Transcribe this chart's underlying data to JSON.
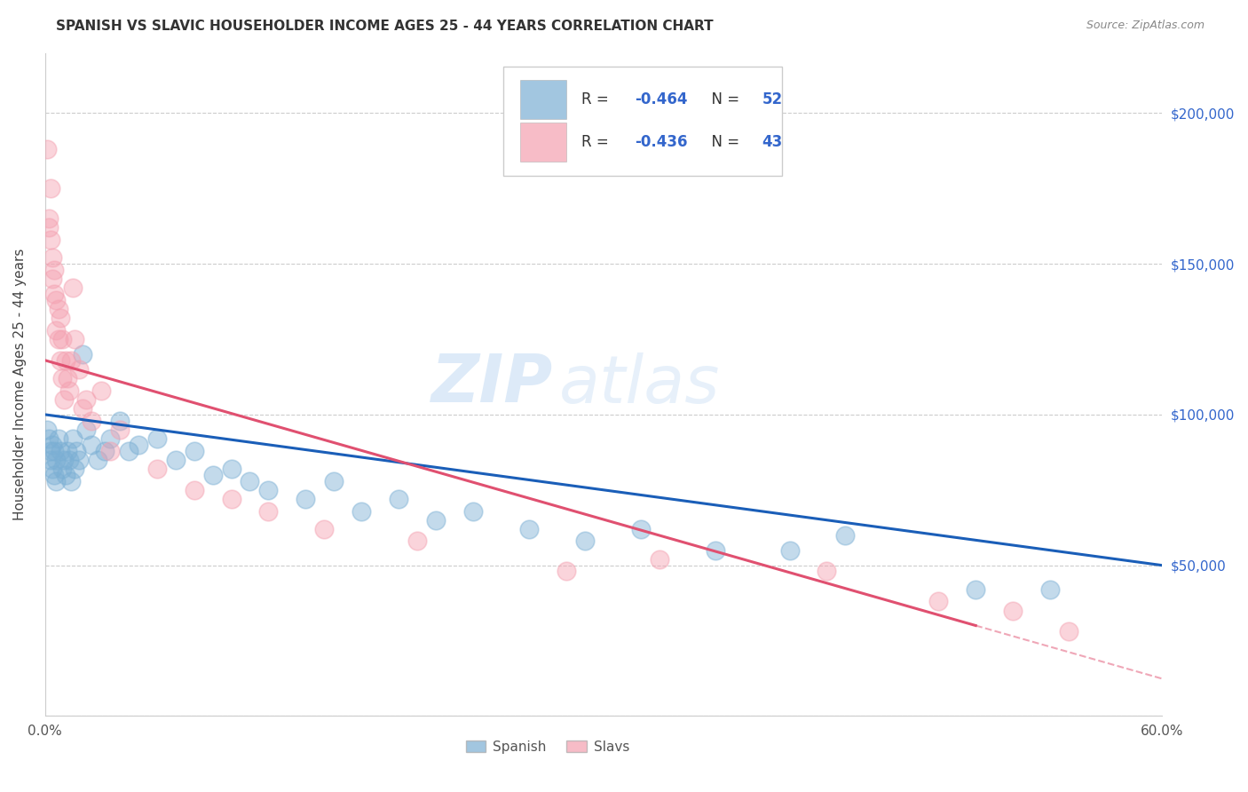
{
  "title": "SPANISH VS SLAVIC HOUSEHOLDER INCOME AGES 25 - 44 YEARS CORRELATION CHART",
  "source": "Source: ZipAtlas.com",
  "ylabel": "Householder Income Ages 25 - 44 years",
  "xlim": [
    0.0,
    0.6
  ],
  "ylim": [
    0,
    220000
  ],
  "yticks": [
    0,
    50000,
    100000,
    150000,
    200000
  ],
  "ytick_labels": [
    "",
    "$50,000",
    "$100,000",
    "$150,000",
    "$200,000"
  ],
  "xticks": [
    0.0,
    0.1,
    0.2,
    0.3,
    0.4,
    0.5,
    0.6
  ],
  "xtick_labels": [
    "0.0%",
    "",
    "",
    "",
    "",
    "",
    "60.0%"
  ],
  "background_color": "#ffffff",
  "grid_color": "#cccccc",
  "watermark_zip": "ZIP",
  "watermark_atlas": "atlas",
  "spanish_color": "#7bafd4",
  "slavs_color": "#f4a0b0",
  "spanish_line_color": "#1a5eb8",
  "slavs_line_color": "#e05070",
  "spanish_R": "-0.464",
  "spanish_N": "52",
  "slavs_R": "-0.436",
  "slavs_N": "43",
  "legend_R_color": "#333333",
  "legend_N_color": "#3366cc",
  "legend_val_color": "#3366cc",
  "spanish_data_x": [
    0.001,
    0.002,
    0.003,
    0.003,
    0.004,
    0.004,
    0.005,
    0.005,
    0.006,
    0.006,
    0.007,
    0.008,
    0.009,
    0.01,
    0.011,
    0.012,
    0.013,
    0.014,
    0.015,
    0.016,
    0.017,
    0.018,
    0.02,
    0.022,
    0.025,
    0.028,
    0.032,
    0.035,
    0.04,
    0.045,
    0.05,
    0.06,
    0.07,
    0.08,
    0.09,
    0.1,
    0.11,
    0.12,
    0.14,
    0.155,
    0.17,
    0.19,
    0.21,
    0.23,
    0.26,
    0.29,
    0.32,
    0.36,
    0.4,
    0.43,
    0.5,
    0.54
  ],
  "spanish_data_y": [
    95000,
    92000,
    88000,
    85000,
    90000,
    82000,
    88000,
    80000,
    85000,
    78000,
    92000,
    88000,
    82000,
    85000,
    80000,
    88000,
    85000,
    78000,
    92000,
    82000,
    88000,
    85000,
    120000,
    95000,
    90000,
    85000,
    88000,
    92000,
    98000,
    88000,
    90000,
    92000,
    85000,
    88000,
    80000,
    82000,
    78000,
    75000,
    72000,
    78000,
    68000,
    72000,
    65000,
    68000,
    62000,
    58000,
    62000,
    55000,
    55000,
    60000,
    42000,
    42000
  ],
  "slavs_data_x": [
    0.001,
    0.002,
    0.002,
    0.003,
    0.003,
    0.004,
    0.004,
    0.005,
    0.005,
    0.006,
    0.006,
    0.007,
    0.007,
    0.008,
    0.008,
    0.009,
    0.009,
    0.01,
    0.011,
    0.012,
    0.013,
    0.014,
    0.015,
    0.016,
    0.018,
    0.02,
    0.022,
    0.025,
    0.03,
    0.035,
    0.04,
    0.06,
    0.08,
    0.1,
    0.12,
    0.15,
    0.2,
    0.28,
    0.33,
    0.42,
    0.48,
    0.52,
    0.55
  ],
  "slavs_data_y": [
    188000,
    165000,
    162000,
    175000,
    158000,
    152000,
    145000,
    148000,
    140000,
    138000,
    128000,
    135000,
    125000,
    132000,
    118000,
    125000,
    112000,
    105000,
    118000,
    112000,
    108000,
    118000,
    142000,
    125000,
    115000,
    102000,
    105000,
    98000,
    108000,
    88000,
    95000,
    82000,
    75000,
    72000,
    68000,
    62000,
    58000,
    48000,
    52000,
    48000,
    38000,
    35000,
    28000
  ]
}
